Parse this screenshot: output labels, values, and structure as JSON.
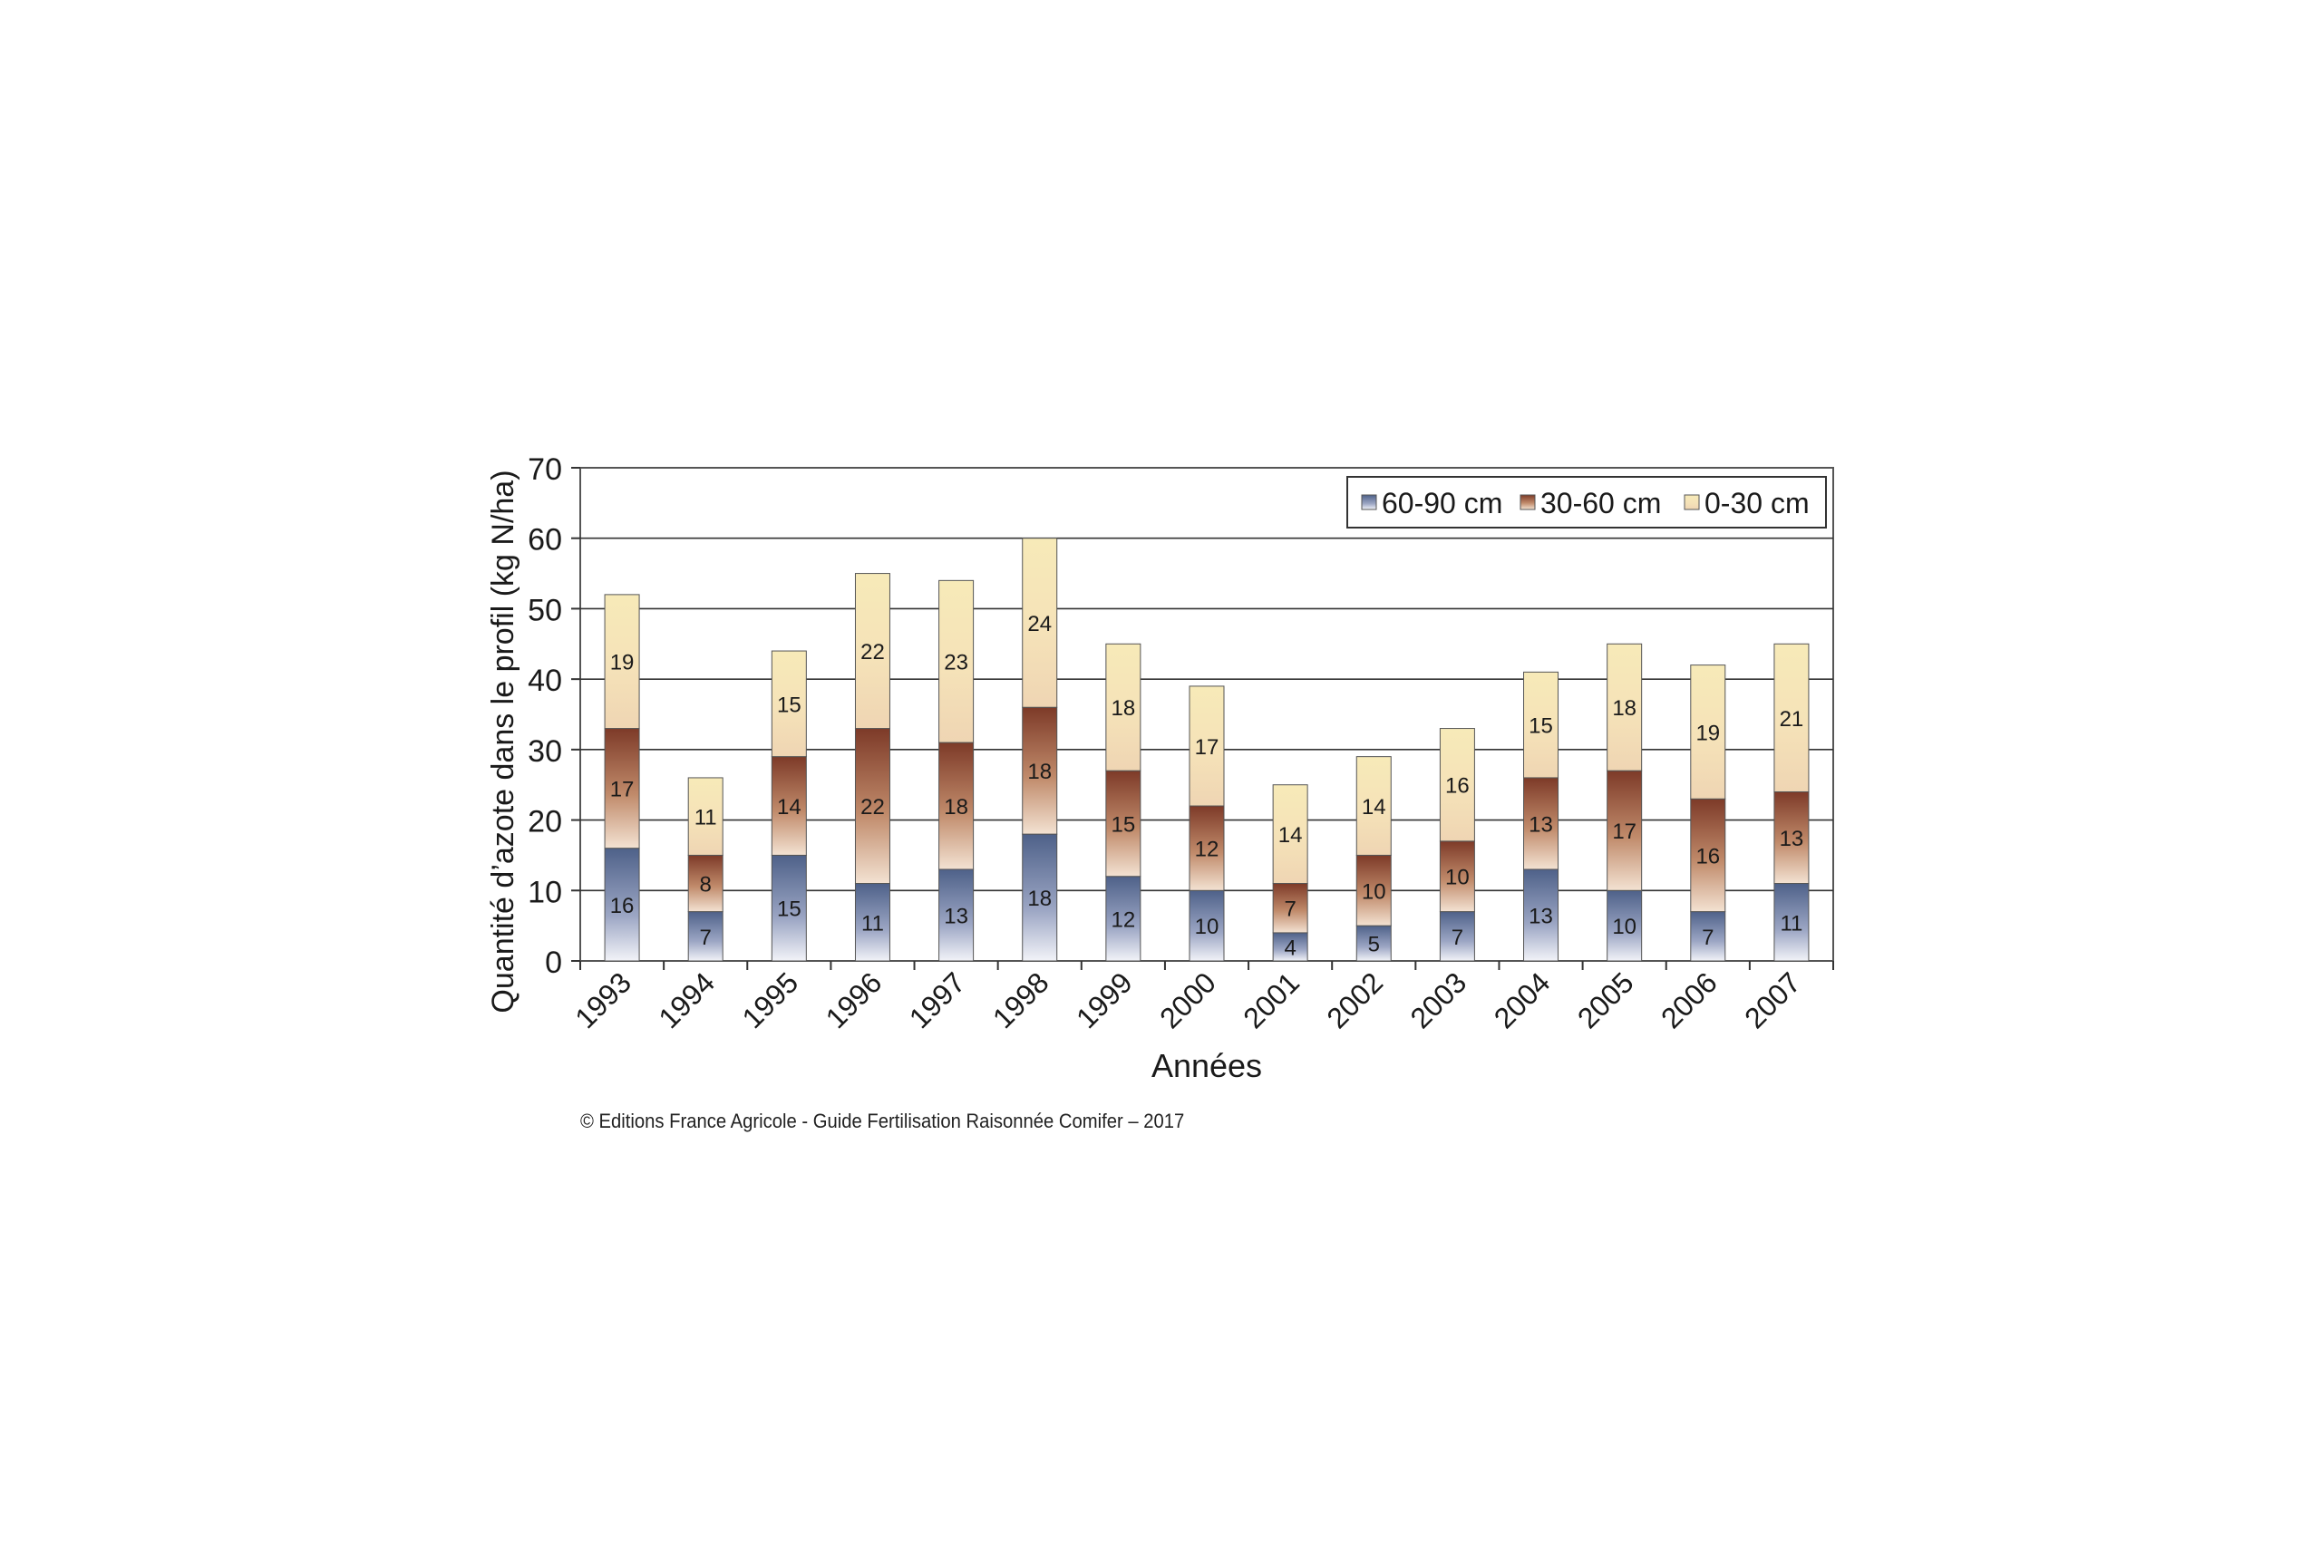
{
  "chart_data": {
    "type": "bar",
    "stacked": true,
    "categories": [
      "1993",
      "1994",
      "1995",
      "1996",
      "1997",
      "1998",
      "1999",
      "2000",
      "2001",
      "2002",
      "2003",
      "2004",
      "2005",
      "2006",
      "2007"
    ],
    "series": [
      {
        "name": "60-90 cm",
        "values": [
          16,
          7,
          15,
          11,
          13,
          18,
          12,
          10,
          4,
          5,
          7,
          13,
          10,
          7,
          11
        ],
        "color": "#5b6e94"
      },
      {
        "name": "30-60 cm",
        "values": [
          17,
          8,
          14,
          22,
          18,
          18,
          15,
          12,
          7,
          10,
          10,
          13,
          17,
          16,
          13
        ],
        "color": "#8a4632"
      },
      {
        "name": "0-30 cm",
        "values": [
          19,
          11,
          15,
          22,
          23,
          24,
          18,
          17,
          14,
          14,
          16,
          15,
          18,
          19,
          21
        ],
        "color": "#f6e6b0"
      }
    ],
    "title": "",
    "xlabel": "Années",
    "ylabel": "Quantité d’azote dans le profil (kg N/ha)",
    "ylim": [
      0,
      70
    ],
    "yticks": [
      0,
      10,
      20,
      30,
      40,
      50,
      60,
      70
    ],
    "grid": true,
    "legend": "top-right"
  },
  "credit": "© Editions France Agricole - Guide Fertilisation Raisonnée Comifer – 2017"
}
